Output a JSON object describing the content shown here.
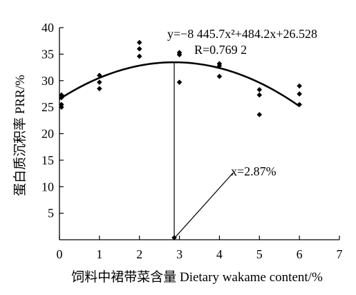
{
  "chart_data": {
    "type": "scatter",
    "xlabel": "饲料中裙带菜含量  Dietary wakame content/%",
    "ylabel": "蛋白质沉积率  PRR/%",
    "xlim": [
      0,
      7
    ],
    "ylim": [
      0,
      40
    ],
    "x_ticks": [
      "0",
      "1",
      "2",
      "3",
      "4",
      "5",
      "6",
      "7"
    ],
    "y_ticks": [
      "5",
      "10",
      "15",
      "20",
      "25",
      "30",
      "35",
      "40"
    ],
    "points": [
      {
        "x": 0.05,
        "y": 27.3
      },
      {
        "x": 0.05,
        "y": 26.8
      },
      {
        "x": 0.05,
        "y": 25.5
      },
      {
        "x": 0.05,
        "y": 25.0
      },
      {
        "x": 1.0,
        "y": 31.0
      },
      {
        "x": 1.0,
        "y": 29.7
      },
      {
        "x": 1.0,
        "y": 28.5
      },
      {
        "x": 2.0,
        "y": 37.2
      },
      {
        "x": 2.0,
        "y": 36.0
      },
      {
        "x": 2.0,
        "y": 34.6
      },
      {
        "x": 3.0,
        "y": 35.3
      },
      {
        "x": 3.0,
        "y": 34.9
      },
      {
        "x": 3.0,
        "y": 29.7
      },
      {
        "x": 4.0,
        "y": 33.2
      },
      {
        "x": 4.0,
        "y": 32.8
      },
      {
        "x": 4.0,
        "y": 30.8
      },
      {
        "x": 5.0,
        "y": 28.3
      },
      {
        "x": 5.0,
        "y": 27.3
      },
      {
        "x": 5.0,
        "y": 23.6
      },
      {
        "x": 6.0,
        "y": 29.0
      },
      {
        "x": 6.0,
        "y": 27.5
      },
      {
        "x": 6.0,
        "y": 25.5
      }
    ],
    "fit": {
      "equation_text": "y=−8 445.7x²+484.2x+26.528",
      "r_text": "R=0.769 2",
      "a": -0.84457,
      "b": 4.842,
      "c": 26.528,
      "x_range": [
        0,
        6
      ]
    },
    "optimum": {
      "x": 2.87,
      "label": "x=2.87%"
    }
  }
}
